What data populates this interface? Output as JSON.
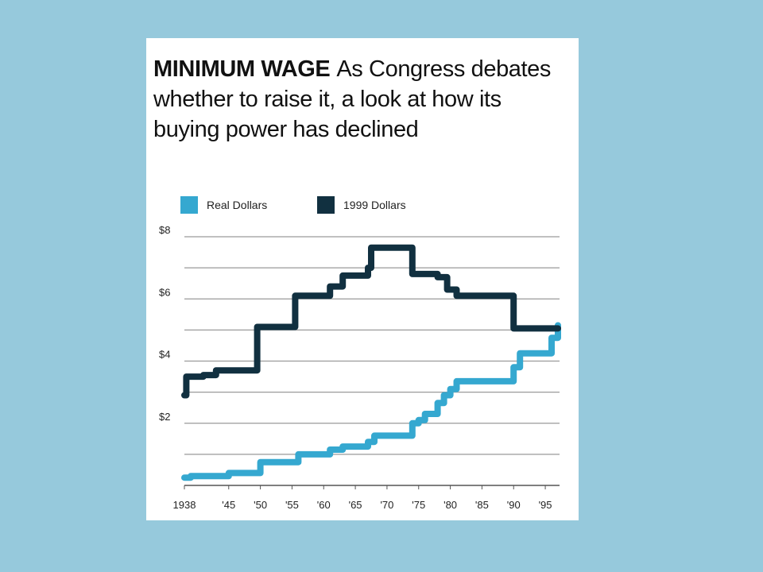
{
  "title": {
    "bold": "MINIMUM WAGE",
    "rest": "As Congress debates whether to raise it, a look at how its buying power has declined"
  },
  "legend": {
    "items": [
      {
        "label": "Real Dollars",
        "color": "#35a8d0"
      },
      {
        "label": "1999 Dollars",
        "color": "#113040"
      }
    ]
  },
  "chart_data": {
    "type": "line",
    "title": "MINIMUM WAGE As Congress debates whether to raise it, a look at how its buying power has declined",
    "xlabel": "",
    "ylabel": "",
    "xlim": [
      1938,
      1997
    ],
    "ylim": [
      0,
      8
    ],
    "grid": true,
    "legend_position": "top-left",
    "x_ticks": [
      {
        "value": 1938,
        "label": "1938"
      },
      {
        "value": 1945,
        "label": "'45"
      },
      {
        "value": 1950,
        "label": "'50"
      },
      {
        "value": 1955,
        "label": "'55"
      },
      {
        "value": 1960,
        "label": "'60"
      },
      {
        "value": 1965,
        "label": "'65"
      },
      {
        "value": 1970,
        "label": "'70"
      },
      {
        "value": 1975,
        "label": "'75"
      },
      {
        "value": 1980,
        "label": "'80"
      },
      {
        "value": 1985,
        "label": "'85"
      },
      {
        "value": 1990,
        "label": "'90"
      },
      {
        "value": 1995,
        "label": "'95"
      }
    ],
    "y_ticks": [
      {
        "value": 2,
        "label": "$2"
      },
      {
        "value": 4,
        "label": "$4"
      },
      {
        "value": 6,
        "label": "$6"
      },
      {
        "value": 8,
        "label": "$8"
      }
    ],
    "y_gridlines": [
      1,
      2,
      3,
      4,
      5,
      6,
      7,
      8
    ],
    "series": [
      {
        "name": "Real Dollars",
        "color": "#35a8d0",
        "step": true,
        "points": [
          [
            1938,
            0.25
          ],
          [
            1939,
            0.3
          ],
          [
            1945,
            0.4
          ],
          [
            1950,
            0.75
          ],
          [
            1956,
            1.0
          ],
          [
            1961,
            1.15
          ],
          [
            1963,
            1.25
          ],
          [
            1967,
            1.4
          ],
          [
            1968,
            1.6
          ],
          [
            1974,
            2.0
          ],
          [
            1975,
            2.1
          ],
          [
            1976,
            2.3
          ],
          [
            1978,
            2.65
          ],
          [
            1979,
            2.9
          ],
          [
            1980,
            3.1
          ],
          [
            1981,
            3.35
          ],
          [
            1990,
            3.8
          ],
          [
            1991,
            4.25
          ],
          [
            1996,
            4.75
          ],
          [
            1997,
            5.15
          ]
        ]
      },
      {
        "name": "1999 Dollars",
        "color": "#113040",
        "step": true,
        "points": [
          [
            1938,
            2.9
          ],
          [
            1938.3,
            3.5
          ],
          [
            1941,
            3.55
          ],
          [
            1943,
            3.7
          ],
          [
            1949.5,
            5.1
          ],
          [
            1955.5,
            6.1
          ],
          [
            1961,
            6.4
          ],
          [
            1963,
            6.75
          ],
          [
            1967,
            7.0
          ],
          [
            1967.5,
            7.65
          ],
          [
            1974,
            6.8
          ],
          [
            1978,
            6.7
          ],
          [
            1979.5,
            6.3
          ],
          [
            1981,
            6.1
          ],
          [
            1990,
            5.05
          ],
          [
            1997,
            5.05
          ]
        ]
      }
    ]
  }
}
